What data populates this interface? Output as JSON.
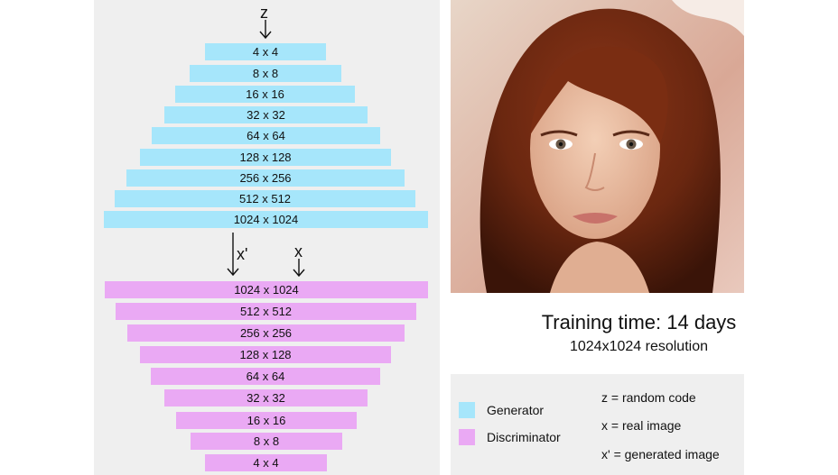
{
  "diagram": {
    "input_symbols": {
      "z": "z",
      "x_fake": "x'",
      "x_real": "x"
    },
    "generator_layers": [
      "4 x 4",
      "8 x 8",
      "16 x 16",
      "32 x 32",
      "64 x 64",
      "128 x 128",
      "256 x 256",
      "512 x 512",
      "1024 x 1024"
    ],
    "discriminator_layers": [
      "1024 x 1024",
      "512 x 512",
      "256 x 256",
      "128 x 128",
      "64 x 64",
      "32 x 32",
      "16 x 16",
      "8 x 8",
      "4 x 4"
    ]
  },
  "caption": {
    "training_time": "Training time: 14 days",
    "resolution": "1024x1024 resolution"
  },
  "legend": {
    "generator_label": "Generator",
    "discriminator_label": "Discriminator",
    "z_def": "z = random code",
    "x_def": "x = real image",
    "xprime_def": "x' = generated image",
    "colors": {
      "generator": "#a6e6fb",
      "discriminator": "#eaa9f4"
    }
  }
}
